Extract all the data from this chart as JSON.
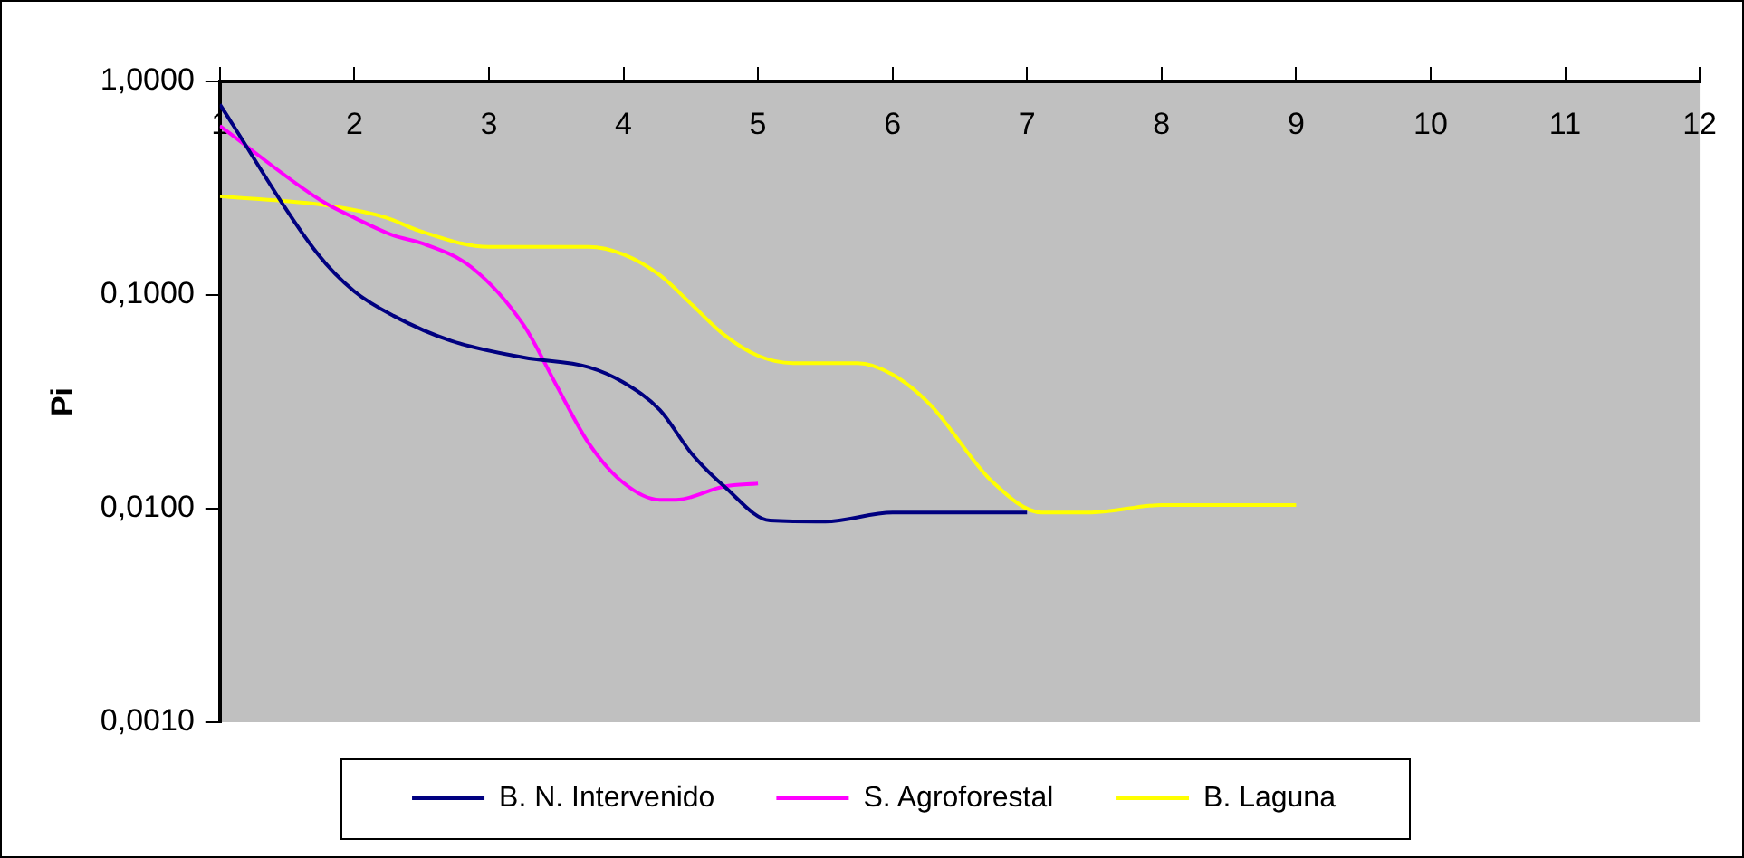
{
  "chart_data": {
    "type": "line",
    "ylabel": "Pi",
    "log": "y",
    "grid": false,
    "legend": "bottom",
    "marker": "none",
    "line_style": "solid",
    "xlim": [
      1,
      12
    ],
    "xticks": [
      1,
      2,
      3,
      4,
      5,
      6,
      7,
      8,
      9,
      10,
      11,
      12
    ],
    "ylim": [
      0.001,
      1
    ],
    "yticks": [
      {
        "value": 0.001,
        "label": "0,0010"
      },
      {
        "value": 0.01,
        "label": "0,0100"
      },
      {
        "value": 0.1,
        "label": "0,1000"
      },
      {
        "value": 1,
        "label": "1,0000"
      }
    ],
    "series": [
      {
        "name": "B. N. Intervenido",
        "color": "#000080",
        "x": [
          1,
          1.73,
          2,
          2.29,
          2.72,
          3.26,
          3.74,
          4,
          4.27,
          4.51,
          4.75,
          5.09,
          5.5,
          6,
          7
        ],
        "values": [
          0.78,
          0.155,
          0.104,
          0.08,
          0.061,
          0.051,
          0.046,
          0.039,
          0.029,
          0.018,
          0.0127,
          0.0088,
          0.0087,
          0.0096,
          0.0096
        ]
      },
      {
        "name": "S. Agroforestal",
        "color": "#ff00ff",
        "x": [
          1,
          1.76,
          2,
          2.29,
          2.51,
          2.87,
          3.26,
          3.5,
          3.74,
          4,
          4.27,
          4.39,
          4.75,
          5
        ],
        "values": [
          0.62,
          0.275,
          0.23,
          0.19,
          0.174,
          0.135,
          0.072,
          0.038,
          0.0203,
          0.0132,
          0.011,
          0.011,
          0.0127,
          0.0131
        ]
      },
      {
        "name": "B. Laguna",
        "color": "#ffff00",
        "x": [
          1,
          1.81,
          2.24,
          2.48,
          3,
          3.74,
          4,
          4.27,
          4.51,
          4.75,
          5,
          5.26,
          5.74,
          6,
          6.28,
          6.74,
          7.11,
          7.48,
          8,
          9
        ],
        "values": [
          0.29,
          0.262,
          0.23,
          0.2,
          0.168,
          0.168,
          0.155,
          0.124,
          0.09,
          0.065,
          0.052,
          0.048,
          0.048,
          0.0425,
          0.0307,
          0.0134,
          0.0096,
          0.0096,
          0.0104,
          0.0104
        ]
      }
    ]
  }
}
